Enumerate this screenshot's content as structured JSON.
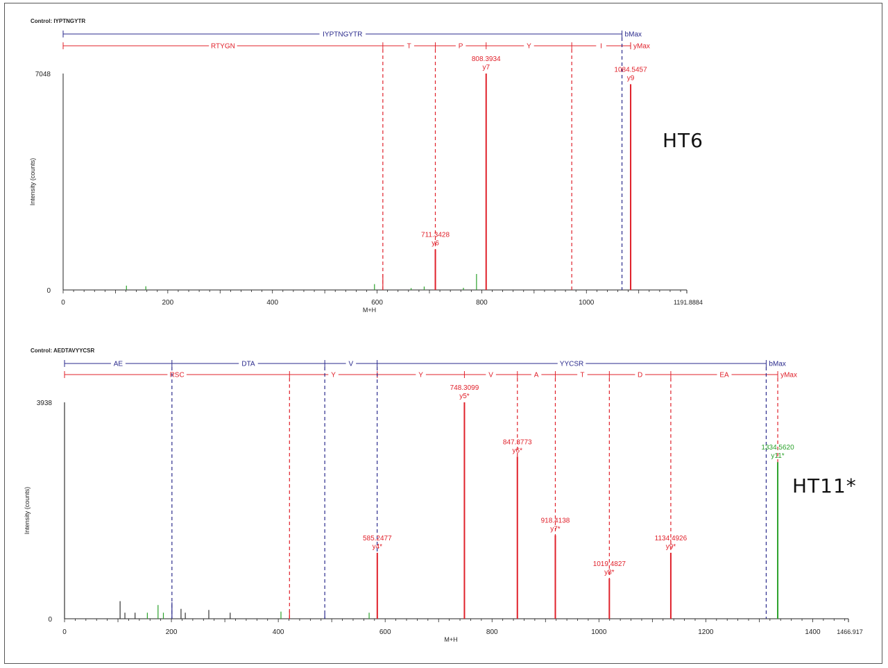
{
  "colors": {
    "b_ion": "#2a2a8c",
    "y_ion": "#e0202a",
    "other": "#2aa12a",
    "neutral": "#333333"
  },
  "panels": [
    {
      "id": "top",
      "sample_label": "HT6",
      "chart_data": {
        "type": "bar",
        "title": "Control: IYPTNGYTR",
        "xlabel": "M+H",
        "ylabel": "Intensity (counts)",
        "xlim": [
          0,
          1191.8884
        ],
        "xlim_label": "1191.8884",
        "ylim": [
          0,
          7048
        ],
        "ylim_label": "7048",
        "xticks": [
          0,
          200,
          400,
          600,
          800,
          1000
        ],
        "b_ladder": {
          "end_label": "bMax",
          "breaks": [
            1068
          ],
          "segments": [
            {
              "from": 0,
              "to": 1068,
              "label": "IYPTNGYTR"
            }
          ]
        },
        "y_ladder": {
          "end_label": "yMax",
          "breaks": [
            611,
            711.3,
            808.4,
            972,
            1084.5
          ],
          "segments": [
            {
              "from": 0,
              "to": 611,
              "label": "RTYGN"
            },
            {
              "from": 611,
              "to": 711.3,
              "label": "T"
            },
            {
              "from": 711.3,
              "to": 808.4,
              "label": "P"
            },
            {
              "from": 808.4,
              "to": 972,
              "label": "Y"
            },
            {
              "from": 972,
              "to": 1084.5,
              "label": "I"
            }
          ]
        },
        "dashed_lines": [
          {
            "x": 611,
            "color": "y"
          },
          {
            "x": 711.3,
            "color": "y"
          },
          {
            "x": 972,
            "color": "y"
          },
          {
            "x": 1068,
            "color": "b"
          }
        ],
        "peaks": [
          {
            "x": 121,
            "y": 140,
            "color": "other"
          },
          {
            "x": 158,
            "y": 120,
            "color": "other"
          },
          {
            "x": 595,
            "y": 190,
            "color": "other"
          },
          {
            "x": 611,
            "y": 520,
            "color": "y"
          },
          {
            "x": 665,
            "y": 60,
            "color": "other"
          },
          {
            "x": 690,
            "y": 110,
            "color": "other"
          },
          {
            "x": 711.3428,
            "y": 1320,
            "color": "y",
            "mz": "711.3428",
            "ion": "y6"
          },
          {
            "x": 765,
            "y": 70,
            "color": "other"
          },
          {
            "x": 790,
            "y": 520,
            "color": "other"
          },
          {
            "x": 808.3934,
            "y": 7048,
            "color": "y",
            "mz": "808.3934",
            "ion": "y7"
          },
          {
            "x": 1084.5457,
            "y": 6700,
            "color": "y",
            "mz": "1084.5457",
            "ion": "y9"
          }
        ]
      }
    },
    {
      "id": "bottom",
      "sample_label": "HT11*",
      "chart_data": {
        "type": "bar",
        "title": "Control: AEDTAVYYCSR",
        "xlabel": "M+H",
        "ylabel": "Intensity (counts)",
        "xlim": [
          0,
          1466.917
        ],
        "xlim_label": "1466.917",
        "ylim": [
          0,
          3938
        ],
        "ylim_label": "3938",
        "xticks": [
          0,
          200,
          400,
          600,
          800,
          1000,
          1200,
          1400
        ],
        "b_ladder": {
          "end_label": "bMax",
          "breaks": [
            201,
            487,
            585,
            1313
          ],
          "segments": [
            {
              "from": 0,
              "to": 201,
              "label": "AE"
            },
            {
              "from": 201,
              "to": 487,
              "label": "DTA"
            },
            {
              "from": 487,
              "to": 585,
              "label": "V"
            },
            {
              "from": 585,
              "to": 1313,
              "label": "YYCSR"
            }
          ]
        },
        "y_ladder": {
          "end_label": "yMax",
          "breaks": [
            421,
            585.2,
            748.3,
            847.4,
            918.4,
            1019.5,
            1134.5,
            1334.6
          ],
          "segments": [
            {
              "from": 0,
              "to": 421,
              "label": "RSC"
            },
            {
              "from": 421,
              "to": 585.2,
              "label": "Y"
            },
            {
              "from": 585.2,
              "to": 748.3,
              "label": "Y"
            },
            {
              "from": 748.3,
              "to": 847.4,
              "label": "V"
            },
            {
              "from": 847.4,
              "to": 918.4,
              "label": "A"
            },
            {
              "from": 918.4,
              "to": 1019.5,
              "label": "T"
            },
            {
              "from": 1019.5,
              "to": 1134.5,
              "label": "D"
            },
            {
              "from": 1134.5,
              "to": 1334.6,
              "label": "EA"
            }
          ]
        },
        "dashed_lines": [
          {
            "x": 201,
            "color": "b"
          },
          {
            "x": 421,
            "color": "y"
          },
          {
            "x": 487,
            "color": "b"
          },
          {
            "x": 585,
            "color": "b"
          },
          {
            "x": 847.4,
            "color": "y"
          },
          {
            "x": 918.4,
            "color": "y"
          },
          {
            "x": 1019.5,
            "color": "y"
          },
          {
            "x": 1134.5,
            "color": "y"
          },
          {
            "x": 1313,
            "color": "b"
          },
          {
            "x": 1334.6,
            "color": "y"
          }
        ],
        "peaks": [
          {
            "x": 0,
            "y": 3938,
            "color": "neutral"
          },
          {
            "x": 104,
            "y": 320,
            "color": "neutral"
          },
          {
            "x": 113,
            "y": 110,
            "color": "neutral"
          },
          {
            "x": 132,
            "y": 110,
            "color": "neutral"
          },
          {
            "x": 155,
            "y": 110,
            "color": "other"
          },
          {
            "x": 175,
            "y": 250,
            "color": "other"
          },
          {
            "x": 185,
            "y": 110,
            "color": "other"
          },
          {
            "x": 201,
            "y": 300,
            "color": "b"
          },
          {
            "x": 218,
            "y": 180,
            "color": "neutral"
          },
          {
            "x": 226,
            "y": 110,
            "color": "neutral"
          },
          {
            "x": 270,
            "y": 160,
            "color": "neutral"
          },
          {
            "x": 310,
            "y": 110,
            "color": "neutral"
          },
          {
            "x": 405,
            "y": 130,
            "color": "other"
          },
          {
            "x": 421,
            "y": 150,
            "color": "y"
          },
          {
            "x": 487,
            "y": 90,
            "color": "b"
          },
          {
            "x": 570,
            "y": 110,
            "color": "other"
          },
          {
            "x": 585.2477,
            "y": 1200,
            "color": "y",
            "mz": "585.2477",
            "ion": "y4*"
          },
          {
            "x": 748.3099,
            "y": 3938,
            "color": "y",
            "mz": "748.3099",
            "ion": "y5*"
          },
          {
            "x": 847.3773,
            "y": 2950,
            "color": "y",
            "mz": "847.3773",
            "ion": "y6*"
          },
          {
            "x": 918.4138,
            "y": 1520,
            "color": "y",
            "mz": "918.4138",
            "ion": "y7*"
          },
          {
            "x": 1019.4827,
            "y": 730,
            "color": "y",
            "mz": "1019.4827",
            "ion": "y8*"
          },
          {
            "x": 1134.4926,
            "y": 1200,
            "color": "y",
            "mz": "1134.4926",
            "ion": "y9*"
          },
          {
            "x": 1334.562,
            "y": 2850,
            "color": "other",
            "mz": "1334.5620",
            "ion": "y11*"
          }
        ]
      }
    }
  ]
}
